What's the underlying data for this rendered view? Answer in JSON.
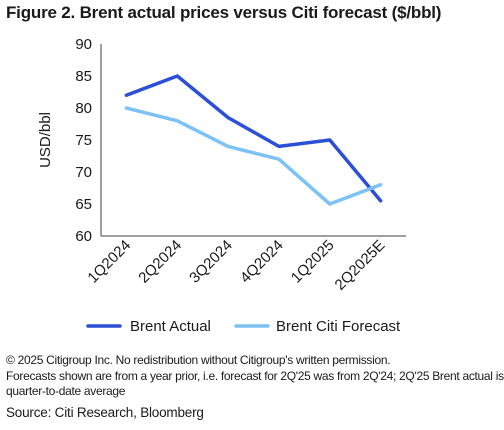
{
  "figure_title": "Figure 2. Brent actual prices versus Citi forecast ($/bbl)",
  "chart_data": {
    "type": "line",
    "categories": [
      "1Q2024",
      "2Q2024",
      "3Q2024",
      "4Q2024",
      "1Q2025",
      "2Q2025E"
    ],
    "series": [
      {
        "name": "Brent Actual",
        "values": [
          82,
          85,
          78.5,
          74,
          75,
          65.5
        ],
        "color": "#2b4fd6"
      },
      {
        "name": "Brent Citi Forecast",
        "values": [
          80,
          78,
          74,
          72,
          65,
          68
        ],
        "color": "#7dc2f5"
      }
    ],
    "ylabel": "USD/bbl",
    "ylim": [
      60,
      90
    ],
    "yticks": [
      60,
      65,
      70,
      75,
      80,
      85,
      90
    ],
    "grid": false,
    "legend": "bottom"
  },
  "notes": {
    "copyright": "© 2025 Citigroup Inc. No redistribution without Citigroup's written permission.",
    "forecast_note_1": "Forecasts shown are from a year prior, i.e. forecast for 2Q'25 was from 2Q'24; 2Q'25 Brent actual is",
    "forecast_note_2": "quarter-to-date average",
    "source": "Source: Citi Research, Bloomberg"
  }
}
